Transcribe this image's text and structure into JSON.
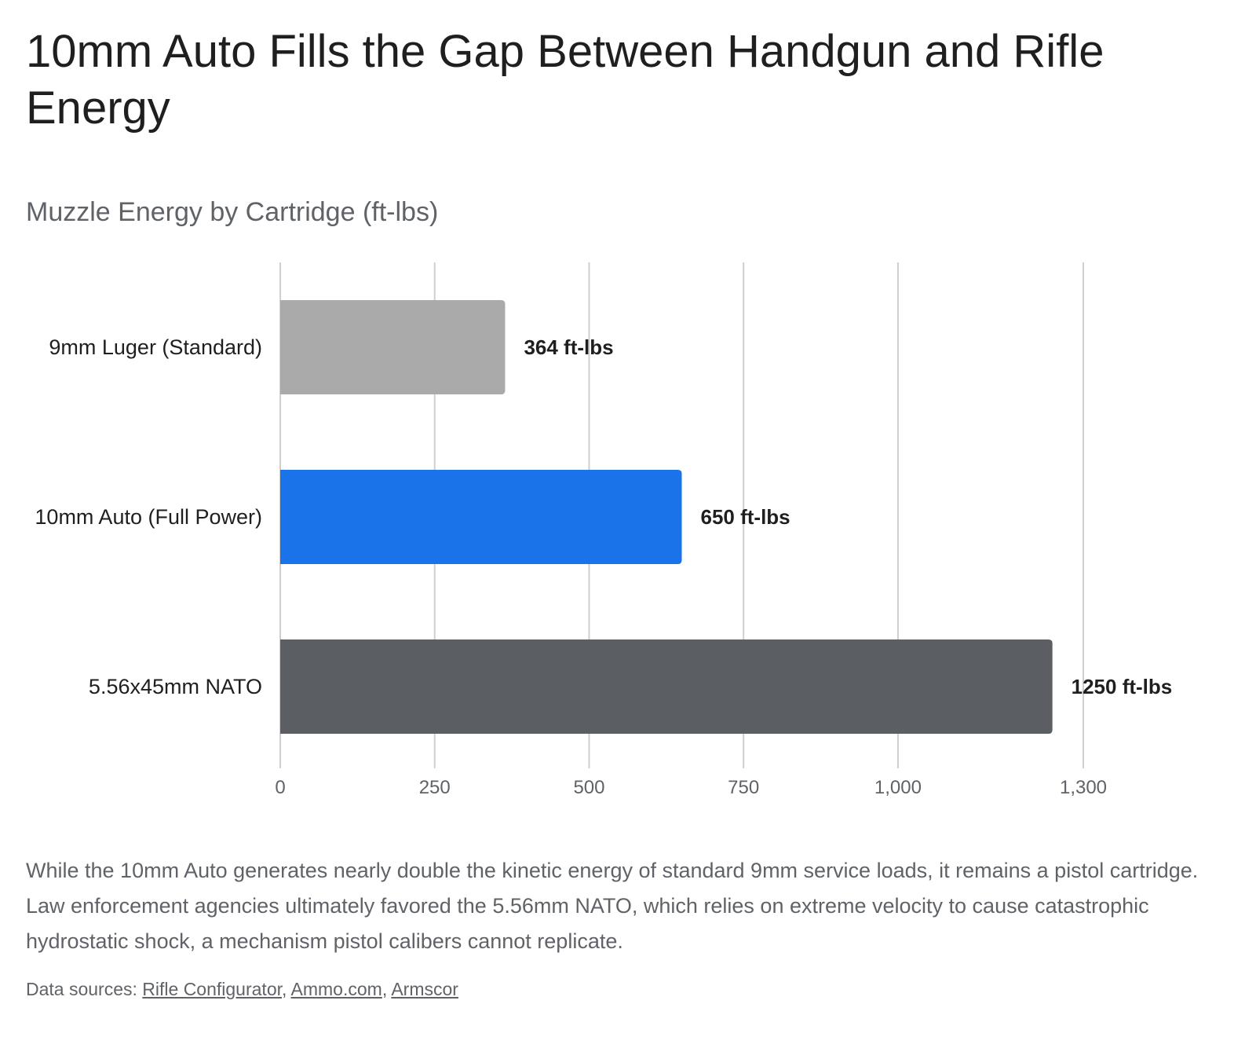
{
  "title": "10mm Auto Fills the Gap Between Handgun and Rifle Energy",
  "subtitle": "Muzzle Energy by Cartridge (ft-lbs)",
  "chart_data": {
    "type": "bar",
    "orientation": "horizontal",
    "title": "10mm Auto Fills the Gap Between Handgun and Rifle Energy",
    "subtitle": "Muzzle Energy by Cartridge (ft-lbs)",
    "categories": [
      "9mm Luger (Standard)",
      "10mm Auto (Full Power)",
      "5.56x45mm NATO"
    ],
    "values": [
      364,
      650,
      1250
    ],
    "value_labels": [
      "364 ft-lbs",
      "650 ft-lbs",
      "1250 ft-lbs"
    ],
    "colors": [
      "#aaaaaa",
      "#1a73e8",
      "#5b5e62"
    ],
    "xticks": [
      0,
      250,
      500,
      750,
      1000,
      1300
    ],
    "xtick_labels": [
      "0",
      "250",
      "500",
      "750",
      "1,000",
      "1,300"
    ],
    "xlim": [
      0,
      1300
    ],
    "xlabel": "",
    "ylabel": "",
    "grid": true,
    "legend": "none"
  },
  "description": "While the 10mm Auto generates nearly double the kinetic energy of standard 9mm service loads, it remains a pistol cartridge. Law enforcement agencies ultimately favored the 5.56mm NATO, which relies on extreme velocity to cause catastrophic hydrostatic shock, a mechanism pistol calibers cannot replicate.",
  "sources": {
    "label": "Data sources:",
    "links": [
      "Rifle Configurator",
      "Ammo.com",
      "Armscor"
    ]
  }
}
